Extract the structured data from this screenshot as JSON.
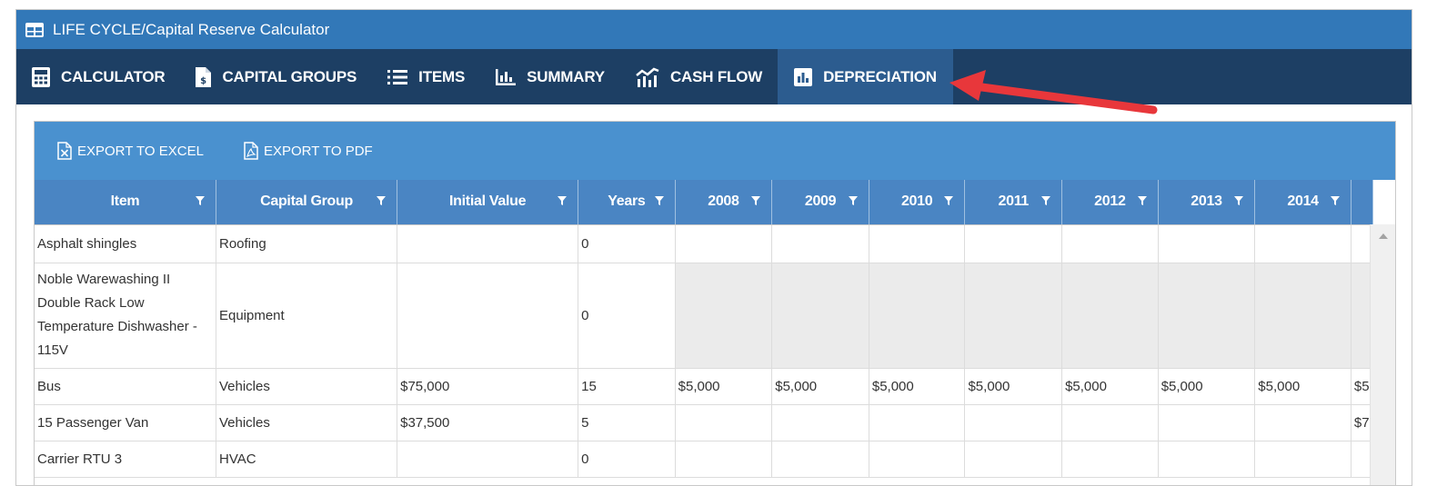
{
  "window": {
    "title": "LIFE CYCLE/Capital Reserve Calculator",
    "icon": "table-icon"
  },
  "nav": {
    "tabs": [
      {
        "label": "CALCULATOR",
        "icon": "calculator-icon"
      },
      {
        "label": "CAPITAL GROUPS",
        "icon": "invoice-icon"
      },
      {
        "label": "ITEMS",
        "icon": "list-icon"
      },
      {
        "label": "SUMMARY",
        "icon": "bar-chart-icon"
      },
      {
        "label": "CASH FLOW",
        "icon": "line-bar-chart-icon"
      },
      {
        "label": "DEPRECIATION",
        "icon": "chart-box-icon",
        "active": true
      }
    ]
  },
  "toolbar": {
    "export_excel": "EXPORT TO EXCEL",
    "export_pdf": "EXPORT TO PDF"
  },
  "grid": {
    "columns": [
      "Item",
      "Capital Group",
      "Initial Value",
      "Years",
      "2008",
      "2009",
      "2010",
      "2011",
      "2012",
      "2013",
      "2014"
    ],
    "rows": [
      {
        "item": "Asphalt shingles",
        "group": "Roofing",
        "initial": "",
        "years": "0",
        "vals": [
          "",
          "",
          "",
          "",
          "",
          "",
          ""
        ],
        "overflow": ""
      },
      {
        "item": "Noble Warewashing II Double Rack Low Temperature Dishwasher - 115V",
        "group": "Equipment",
        "initial": "",
        "years": "0",
        "vals": [
          "",
          "",
          "",
          "",
          "",
          "",
          ""
        ],
        "overflow": ""
      },
      {
        "item": "Bus",
        "group": "Vehicles",
        "initial": "$75,000",
        "years": "15",
        "vals": [
          "$5,000",
          "$5,000",
          "$5,000",
          "$5,000",
          "$5,000",
          "$5,000",
          "$5,000"
        ],
        "overflow": "$5"
      },
      {
        "item": "15 Passenger Van",
        "group": "Vehicles",
        "initial": "$37,500",
        "years": "5",
        "vals": [
          "",
          "",
          "",
          "",
          "",
          "",
          ""
        ],
        "overflow": "$7"
      },
      {
        "item": "Carrier RTU 3",
        "group": "HVAC",
        "initial": "",
        "years": "0",
        "vals": [
          "",
          "",
          "",
          "",
          "",
          "",
          ""
        ],
        "overflow": ""
      }
    ]
  },
  "colors": {
    "titlebar": "#3278b8",
    "navbar": "#1d3f64",
    "active_tab": "#2c5c8f",
    "toolbar": "#4a91cf",
    "header": "#4a85c3",
    "arrow": "#e8373b"
  }
}
